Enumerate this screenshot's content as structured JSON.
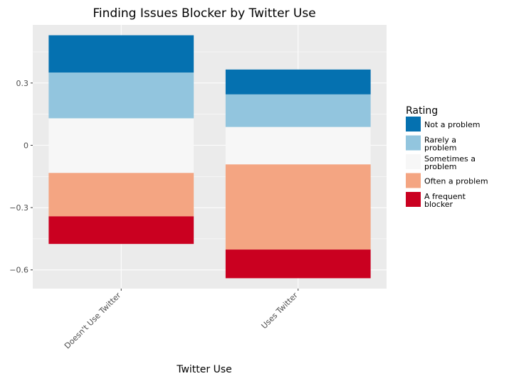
{
  "chart_data": {
    "type": "bar",
    "stacked": "diverging",
    "title": "Finding Issues Blocker by Twitter Use",
    "xlabel": "Twitter Use",
    "ylabel": "",
    "ylim": [
      -0.69,
      0.58
    ],
    "yticks": [
      0.3,
      0,
      -0.3,
      -0.6
    ],
    "ytick_labels": [
      "0.3",
      "0",
      "−0.3",
      "−0.6"
    ],
    "grid": true,
    "legend_position": "right",
    "legend_title": "Rating",
    "categories": [
      "Doesn't Use Twitter",
      "Uses Twitter"
    ],
    "series": [
      {
        "name": "Not a problem",
        "color": "#0571b0",
        "ranges": [
          [
            0.35,
            0.53
          ],
          [
            0.245,
            0.365
          ]
        ]
      },
      {
        "name": "Rarely a problem",
        "color": "#92c5de",
        "ranges": [
          [
            0.13,
            0.35
          ],
          [
            0.088,
            0.245
          ]
        ]
      },
      {
        "name": "Sometimes a problem",
        "color": "#f7f7f7",
        "ranges": [
          [
            -0.133,
            0.13
          ],
          [
            -0.092,
            0.088
          ]
        ]
      },
      {
        "name": "Often a problem",
        "color": "#f4a582",
        "ranges": [
          [
            -0.342,
            -0.133
          ],
          [
            -0.502,
            -0.092
          ]
        ]
      },
      {
        "name": "A frequent blocker",
        "color": "#ca0020",
        "ranges": [
          [
            -0.475,
            -0.342
          ],
          [
            -0.64,
            -0.502
          ]
        ]
      }
    ],
    "legend_labels": [
      [
        "Not a problem"
      ],
      [
        "Rarely a",
        "problem"
      ],
      [
        "Sometimes a",
        "problem"
      ],
      [
        "Often a problem"
      ],
      [
        "A frequent",
        "blocker"
      ]
    ]
  }
}
